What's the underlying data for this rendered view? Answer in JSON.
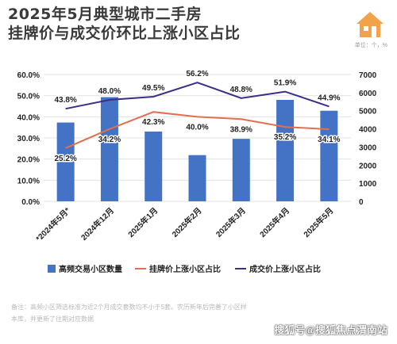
{
  "header": {
    "title_line1": "2025年5月典型城市二手房",
    "title_line2": "挂牌价与成交价环比上涨小区占比",
    "unit": "单位：个，%",
    "logo_icon": "house-logo-icon"
  },
  "footnote": "备注：高频小区筛选标准为近2个月成交套数均不小于5套。农历新年后完善了小区样本库，并更新了往期对应数据",
  "watermark": "搜狐号@搜狐焦点渭南站",
  "colors": {
    "bar": "#4472c4",
    "listing_line": "#e07050",
    "deal_line": "#3a2e86",
    "title": "#3a3a3a",
    "logo": "#f2a24a"
  },
  "chart_data": {
    "type": "bar",
    "categories": [
      "*2024年5月*",
      "2024年12月",
      "2025年1月",
      "2025年2月",
      "2025年3月",
      "2025年4月",
      "2025年5月"
    ],
    "left_axis": {
      "ylim": [
        0,
        60
      ],
      "ticks": [
        "0.0%",
        "10.0%",
        "20.0%",
        "30.0%",
        "40.0%",
        "50.0%",
        "60.0%"
      ],
      "tick_values": [
        0,
        10,
        20,
        30,
        40,
        50,
        60
      ]
    },
    "right_axis": {
      "ylim": [
        0,
        7000
      ],
      "ticks": [
        "0",
        "1000",
        "2000",
        "3000",
        "4000",
        "5000",
        "6000",
        "7000"
      ],
      "tick_values": [
        0,
        1000,
        2000,
        3000,
        4000,
        5000,
        6000,
        7000
      ]
    },
    "grid": true,
    "legend_position": "bottom",
    "series": [
      {
        "name": "高频交易小区数量",
        "kind": "bar",
        "axis": "right",
        "values": [
          4350,
          5750,
          3850,
          2550,
          3450,
          5600,
          5000
        ]
      },
      {
        "name": "挂牌价上涨小区占比",
        "kind": "line",
        "axis": "left",
        "values": [
          25.2,
          34.2,
          42.3,
          40.0,
          38.9,
          35.2,
          34.1
        ],
        "labels": [
          "25.2%",
          "34.2%",
          "42.3%",
          "40.0%",
          "38.9%",
          "35.2%",
          "34.1%"
        ]
      },
      {
        "name": "成交价上涨小区占比",
        "kind": "line",
        "axis": "left",
        "values": [
          43.8,
          48.0,
          49.5,
          56.2,
          48.8,
          51.9,
          44.9
        ],
        "labels": [
          "43.8%",
          "48.0%",
          "49.5%",
          "56.2%",
          "48.8%",
          "51.9%",
          "44.9%"
        ]
      }
    ]
  }
}
